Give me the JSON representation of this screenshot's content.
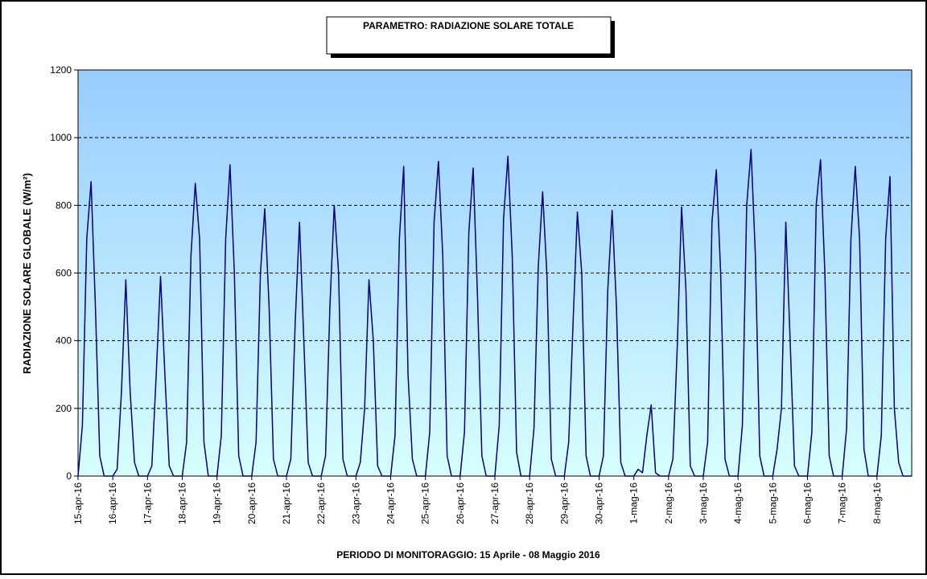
{
  "chart_data": {
    "type": "line",
    "title": "PARAMETRO: RADIAZIONE SOLARE TOTALE",
    "x_label": "PERIODO DI MONITORAGGIO: 15 Aprile - 08 Maggio 2016",
    "y_label": "RADIAZIONE SOLARE GLOBALE (W/m²)",
    "color": "#000080",
    "grid": true,
    "xlim": [
      0,
      576
    ],
    "ylim": [
      0,
      1200
    ],
    "yticks": [
      0,
      200,
      400,
      600,
      800,
      1000,
      1200
    ],
    "xticks": [
      {
        "value": 0,
        "label": "15-apr-16"
      },
      {
        "value": 24,
        "label": "16-apr-16"
      },
      {
        "value": 48,
        "label": "17-apr-16"
      },
      {
        "value": 72,
        "label": "18-apr-16"
      },
      {
        "value": 96,
        "label": "19-apr-16"
      },
      {
        "value": 120,
        "label": "20-apr-16"
      },
      {
        "value": 144,
        "label": "21-apr-16"
      },
      {
        "value": 168,
        "label": "22-apr-16"
      },
      {
        "value": 192,
        "label": "23-apr-16"
      },
      {
        "value": 216,
        "label": "24-apr-16"
      },
      {
        "value": 240,
        "label": "25-apr-16"
      },
      {
        "value": 264,
        "label": "26-apr-16"
      },
      {
        "value": 288,
        "label": "27-apr-16"
      },
      {
        "value": 312,
        "label": "28-apr-16"
      },
      {
        "value": 336,
        "label": "29-apr-16"
      },
      {
        "value": 360,
        "label": "30-apr-16"
      },
      {
        "value": 384,
        "label": "1-mag-16"
      },
      {
        "value": 408,
        "label": "2-mag-16"
      },
      {
        "value": 432,
        "label": "3-mag-16"
      },
      {
        "value": 456,
        "label": "4-mag-16"
      },
      {
        "value": 480,
        "label": "5-mag-16"
      },
      {
        "value": 504,
        "label": "6-mag-16"
      },
      {
        "value": 528,
        "label": "7-mag-16"
      },
      {
        "value": 552,
        "label": "8-mag-16"
      }
    ],
    "x": [
      0,
      3,
      6,
      9,
      12,
      15,
      18,
      21,
      24,
      27,
      30,
      33,
      36,
      39,
      42,
      45,
      48,
      51,
      54,
      57,
      60,
      63,
      66,
      69,
      72,
      75,
      78,
      81,
      84,
      87,
      90,
      93,
      96,
      99,
      102,
      105,
      108,
      111,
      114,
      117,
      120,
      123,
      126,
      129,
      132,
      135,
      138,
      141,
      144,
      147,
      150,
      153,
      156,
      159,
      162,
      165,
      168,
      171,
      174,
      177,
      180,
      183,
      186,
      189,
      192,
      195,
      198,
      201,
      204,
      207,
      210,
      213,
      216,
      219,
      222,
      225,
      228,
      231,
      234,
      237,
      240,
      243,
      246,
      249,
      252,
      255,
      258,
      261,
      264,
      267,
      270,
      273,
      276,
      279,
      282,
      285,
      288,
      291,
      294,
      297,
      300,
      303,
      306,
      309,
      312,
      315,
      318,
      321,
      324,
      327,
      330,
      333,
      336,
      339,
      342,
      345,
      348,
      351,
      354,
      357,
      360,
      363,
      366,
      369,
      372,
      375,
      378,
      381,
      384,
      387,
      390,
      393,
      396,
      399,
      402,
      405,
      408,
      411,
      414,
      417,
      420,
      423,
      426,
      429,
      432,
      435,
      438,
      441,
      444,
      447,
      450,
      453,
      456,
      459,
      462,
      465,
      468,
      471,
      474,
      477,
      480,
      483,
      486,
      489,
      492,
      495,
      498,
      501,
      504,
      507,
      510,
      513,
      516,
      519,
      522,
      525,
      528,
      531,
      534,
      537,
      540,
      543,
      546,
      549,
      552,
      555,
      558,
      561,
      564,
      567,
      570,
      573,
      576
    ],
    "values": [
      0,
      150,
      700,
      870,
      500,
      60,
      0,
      0,
      0,
      20,
      250,
      580,
      250,
      40,
      0,
      0,
      0,
      30,
      300,
      590,
      300,
      30,
      0,
      0,
      0,
      100,
      650,
      865,
      700,
      100,
      0,
      0,
      0,
      120,
      700,
      920,
      600,
      60,
      0,
      0,
      0,
      100,
      600,
      790,
      500,
      50,
      0,
      0,
      0,
      50,
      450,
      750,
      400,
      40,
      0,
      0,
      0,
      60,
      500,
      800,
      600,
      50,
      0,
      0,
      0,
      40,
      200,
      580,
      400,
      30,
      0,
      0,
      0,
      120,
      700,
      915,
      300,
      50,
      0,
      0,
      0,
      130,
      750,
      930,
      650,
      60,
      0,
      0,
      0,
      130,
      720,
      910,
      530,
      60,
      0,
      0,
      0,
      150,
      760,
      945,
      650,
      70,
      0,
      0,
      0,
      140,
      620,
      840,
      590,
      50,
      0,
      0,
      0,
      100,
      450,
      780,
      600,
      60,
      0,
      0,
      0,
      60,
      550,
      785,
      500,
      40,
      0,
      0,
      0,
      20,
      10,
      120,
      210,
      10,
      0,
      0,
      0,
      50,
      380,
      795,
      550,
      30,
      0,
      0,
      0,
      100,
      750,
      905,
      600,
      50,
      0,
      0,
      0,
      150,
      800,
      965,
      650,
      60,
      0,
      0,
      0,
      80,
      200,
      750,
      400,
      30,
      0,
      0,
      0,
      130,
      800,
      935,
      600,
      60,
      0,
      0,
      0,
      140,
      700,
      915,
      700,
      80,
      0,
      0,
      0,
      120,
      700,
      885,
      200,
      40,
      0,
      0,
      0
    ]
  }
}
